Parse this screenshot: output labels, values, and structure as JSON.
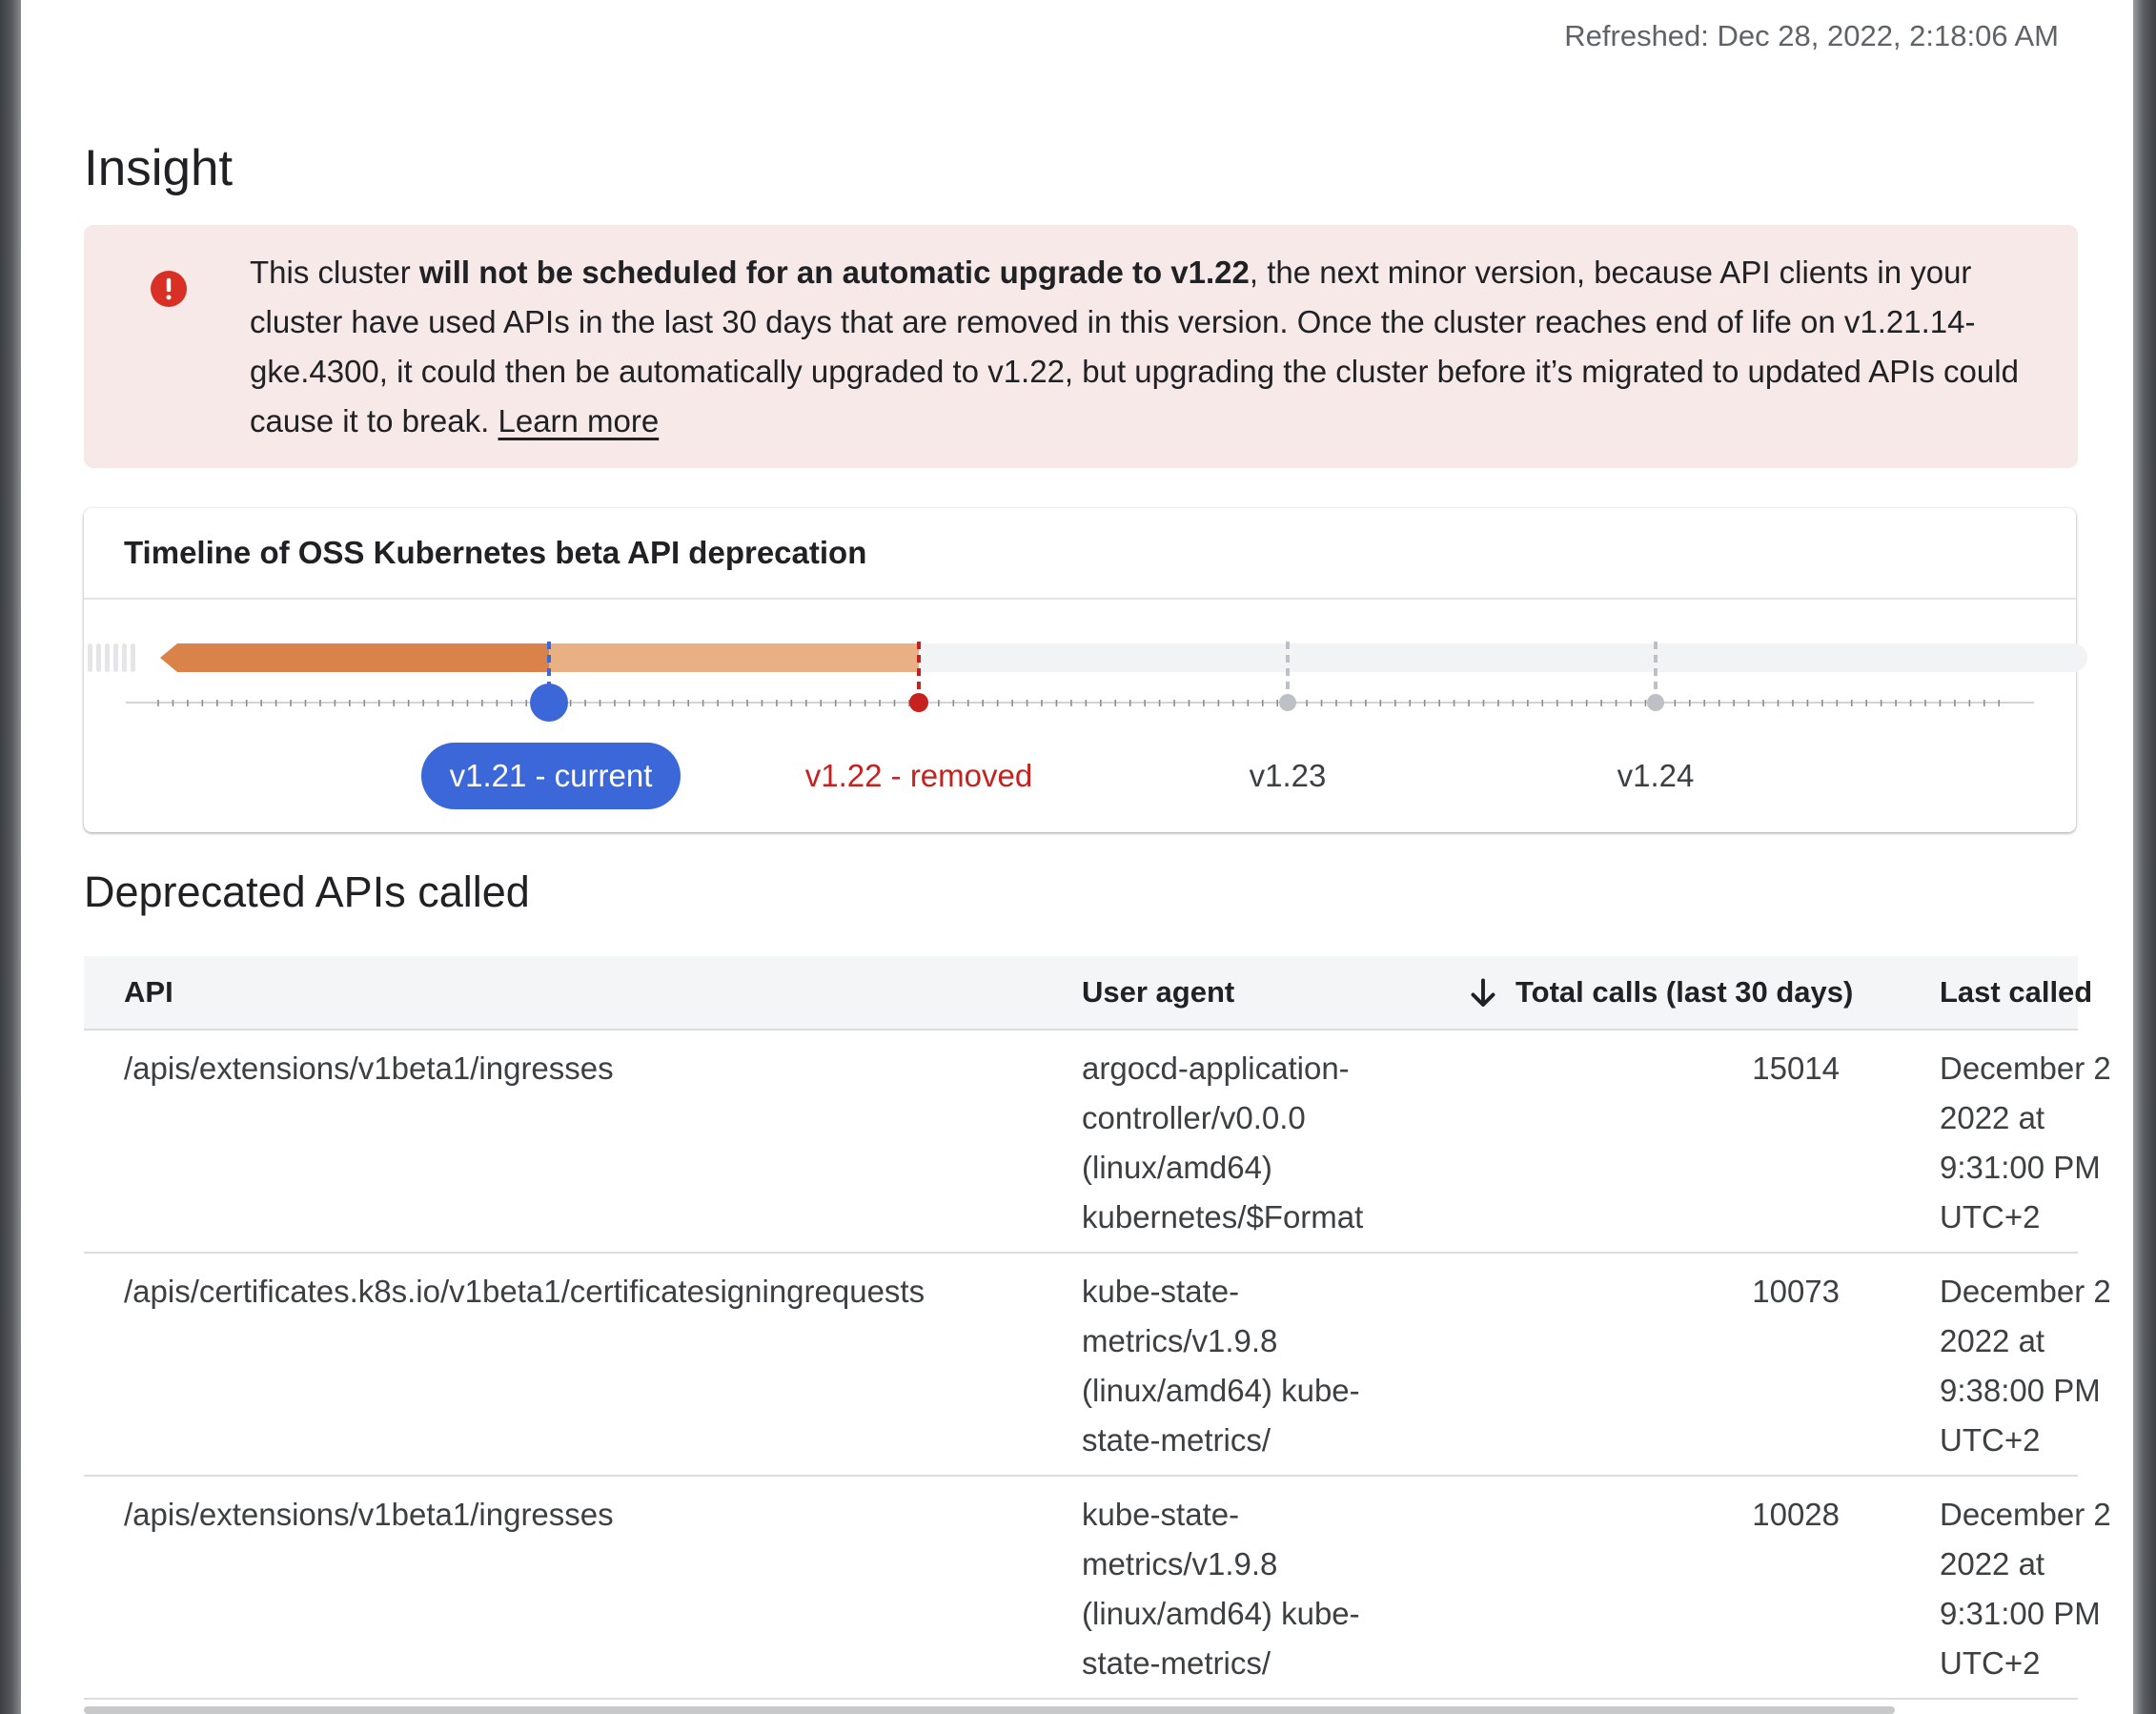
{
  "refreshed": "Refreshed: Dec 28, 2022, 2:18:06 AM",
  "title": "Insight",
  "alert": {
    "icon": "error-icon",
    "text_before": "This cluster ",
    "text_bold": "will not be scheduled for an automatic upgrade to v1.22",
    "text_after": ", the next minor version, because API clients in your cluster have used APIs in the last 30 days that are removed in this version. Once the cluster reaches end of life on v1.21.14-gke.4300, it could then be automatically upgraded to v1.22, but upgrading the cluster before it’s migrated to updated APIs could cause it to break. ",
    "link": "Learn more",
    "colors": {
      "background": "#f6e9e7",
      "icon": "#d93025"
    }
  },
  "timeline": {
    "title": "Timeline of OSS Kubernetes beta API deprecation",
    "versions": [
      {
        "label": "v1.21 - current",
        "state": "current"
      },
      {
        "label": "v1.22 - removed",
        "state": "removed"
      },
      {
        "label": "v1.23",
        "state": "future"
      },
      {
        "label": "v1.24",
        "state": "future"
      }
    ],
    "colors": {
      "past": "#d9834b",
      "deprecated": "#e8b083",
      "future": "#f1f3f4",
      "current": "#3b67d8",
      "removed": "#c5221f",
      "neutral": "#bdc1c6"
    }
  },
  "deprecated": {
    "title": "Deprecated APIs called",
    "columns": {
      "api": "API",
      "user_agent": "User agent",
      "total_calls": "Total calls (last 30 days)",
      "last_called": "Last called",
      "sort_icon": "arrow-down-icon"
    },
    "rows": [
      {
        "api": "/apis/extensions/v1beta1/ingresses",
        "agent": [
          "argocd-application-",
          "controller/v0.0.0",
          "(linux/amd64)",
          "kubernetes/$Format"
        ],
        "calls": "15014",
        "last": [
          "December 2",
          "2022 at",
          "9:31:00 PM",
          "UTC+2"
        ]
      },
      {
        "api": "/apis/certificates.k8s.io/v1beta1/certificatesigningrequests",
        "agent": [
          "kube-state-",
          "metrics/v1.9.8",
          "(linux/amd64) kube-",
          "state-metrics/"
        ],
        "calls": "10073",
        "last": [
          "December 2",
          "2022 at",
          "9:38:00 PM",
          "UTC+2"
        ]
      },
      {
        "api": "/apis/extensions/v1beta1/ingresses",
        "agent": [
          "kube-state-",
          "metrics/v1.9.8",
          "(linux/amd64) kube-",
          "state-metrics/"
        ],
        "calls": "10028",
        "last": [
          "December 2",
          "2022 at",
          "9:31:00 PM",
          "UTC+2"
        ]
      }
    ]
  }
}
